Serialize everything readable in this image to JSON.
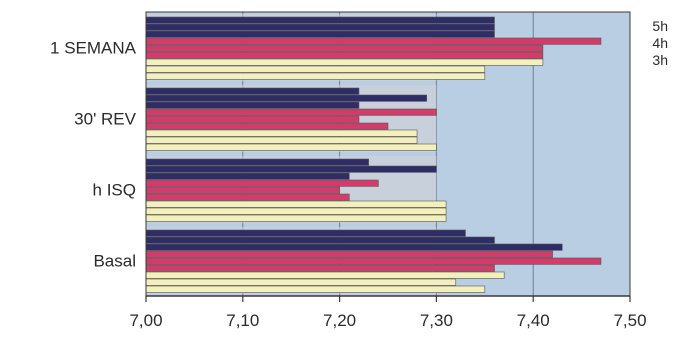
{
  "chart_data": {
    "type": "bar",
    "orientation": "horizontal",
    "categories": [
      "1 SEMANA",
      "30' REV",
      "h ISQ",
      "Basal"
    ],
    "series": [
      {
        "name": "5h",
        "color": "#2f2d66",
        "values": [
          7.36,
          7.22,
          7.23,
          7.33
        ]
      },
      {
        "name": "5h",
        "color": "#2f2d66",
        "values": [
          7.36,
          7.29,
          7.3,
          7.36
        ]
      },
      {
        "name": "5h",
        "color": "#2f2d66",
        "values": [
          7.36,
          7.22,
          7.21,
          7.43
        ]
      },
      {
        "name": "4h",
        "color": "#d13c6a",
        "values": [
          7.47,
          7.3,
          7.24,
          7.42
        ]
      },
      {
        "name": "4h",
        "color": "#d13c6a",
        "values": [
          7.41,
          7.22,
          7.2,
          7.47
        ]
      },
      {
        "name": "4h",
        "color": "#d13c6a",
        "values": [
          7.41,
          7.25,
          7.21,
          7.36
        ]
      },
      {
        "name": "3h",
        "color": "#f3f0bc",
        "values": [
          7.41,
          7.28,
          7.31,
          7.37
        ]
      },
      {
        "name": "3h",
        "color": "#f3f0bc",
        "values": [
          7.35,
          7.28,
          7.31,
          7.32
        ]
      },
      {
        "name": "3h",
        "color": "#f3f0bc",
        "values": [
          7.35,
          7.3,
          7.31,
          7.35
        ]
      }
    ],
    "title": "",
    "xlabel": "",
    "ylabel": "",
    "xlim": [
      7.0,
      7.5
    ],
    "xticks": [
      "7,00",
      "7,10",
      "7,20",
      "7,30",
      "7,40",
      "7,50"
    ],
    "legend": [
      "5h",
      "4h",
      "3h"
    ],
    "legend_position": "top-right",
    "grid": true,
    "colors": {
      "plot_background": "#b9cde3",
      "group_background": "#d6d6d6",
      "gridline": "#6f7f94",
      "axis": "#3a3a3a",
      "bar_outline": "#555555"
    }
  }
}
